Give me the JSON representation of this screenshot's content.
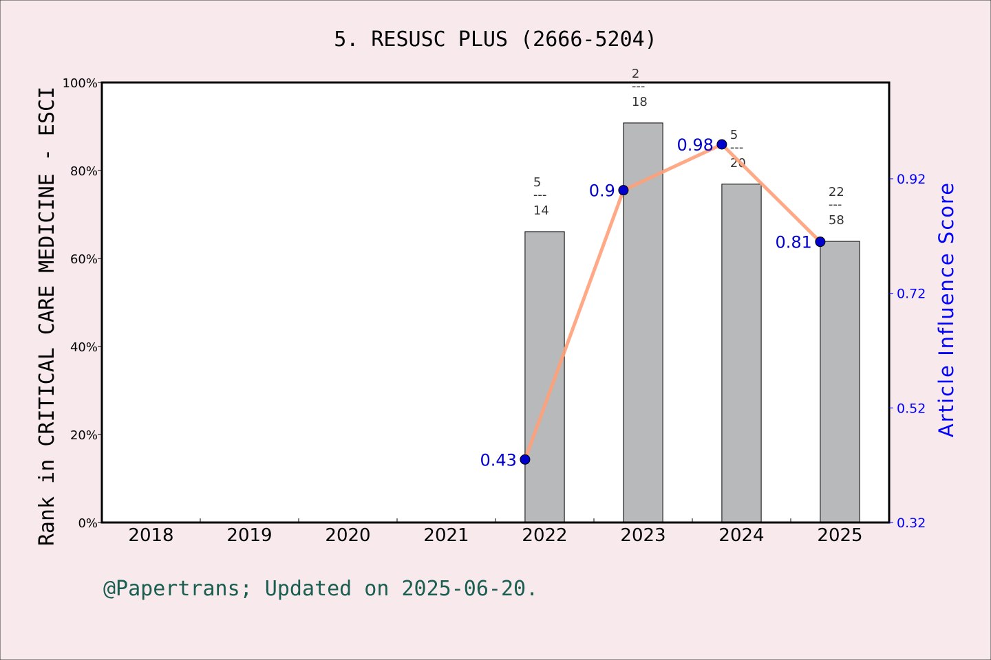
{
  "chart_data": {
    "type": "bar",
    "title": "5. RESUSC PLUS (2666-5204)",
    "ylabel": "Rank in CRITICAL CARE MEDICINE - ESCI",
    "y2label": "Article Influence Score",
    "categories": [
      "2018",
      "2019",
      "2020",
      "2021",
      "2022",
      "2023",
      "2024",
      "2025"
    ],
    "ylim": [
      0,
      100
    ],
    "yticks": [
      "0%",
      "20%",
      "40%",
      "60%",
      "80%",
      "100%"
    ],
    "y2lim": [
      0.32,
      1.08
    ],
    "y2ticks": [
      "0.32",
      "0.52",
      "0.72",
      "0.92"
    ],
    "grid": false,
    "series": [
      {
        "type": "bar",
        "values": [
          null,
          null,
          null,
          null,
          66.1,
          90.8,
          76.9,
          63.9
        ],
        "rank_labels": [
          null,
          null,
          null,
          null,
          {
            "num": "5",
            "den": "14"
          },
          {
            "num": "2",
            "den": "18"
          },
          {
            "num": "5",
            "den": "20"
          },
          {
            "num": "22",
            "den": "58"
          }
        ],
        "color": "#b8b9ba"
      },
      {
        "type": "line",
        "axis": "right",
        "values": [
          null,
          null,
          null,
          null,
          0.43,
          0.9,
          0.98,
          0.81
        ],
        "labels": [
          null,
          null,
          null,
          null,
          "0.43",
          "0.9",
          "0.98",
          "0.81"
        ],
        "color": "#ffa07a",
        "marker_color": "#0000cc"
      }
    ],
    "fraction_bar": "---"
  },
  "footer": "@Papertrans; Updated on 2025-06-20.",
  "colors": {
    "background": "#f7e9ec",
    "footer": "#1a5e50",
    "right_axis": "#0000ff"
  }
}
